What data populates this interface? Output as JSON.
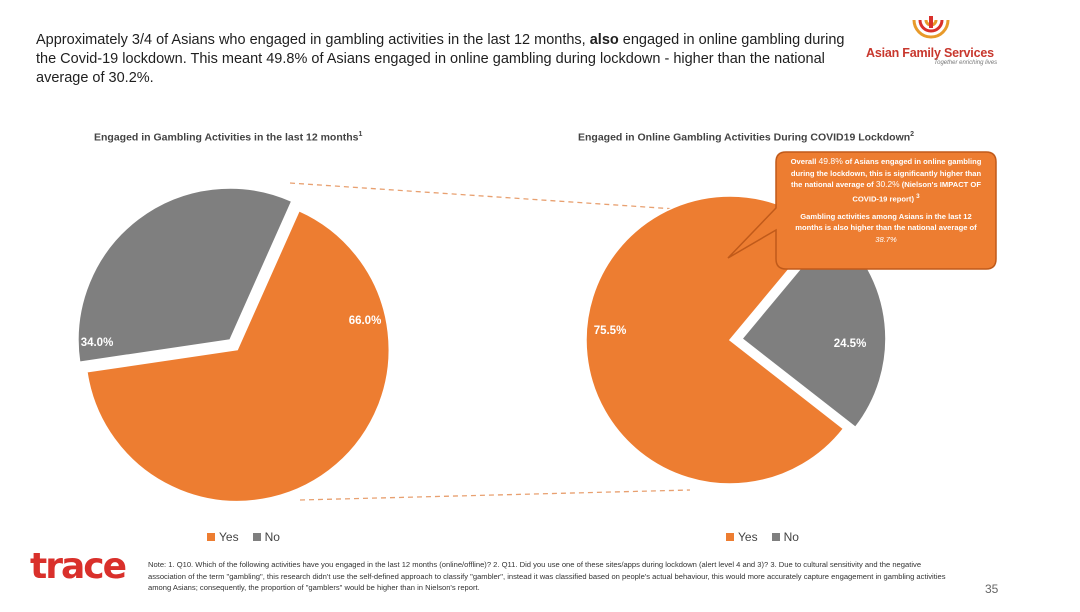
{
  "headline": {
    "part1": "Approximately 3/4 of Asians who engaged in gambling activities in the last 12 months, ",
    "bold": "also",
    "part2": " engaged in online gambling during the Covid-19 lockdown. This meant 49.8% of Asians engaged in online gambling during lockdown - higher than the national average of 30.2%."
  },
  "brand": {
    "name": "Asian Family Services",
    "tagline": "Together enriching lives",
    "footer_logo": "trace"
  },
  "colors": {
    "yes": "#ED7D31",
    "no": "#7F7F7F",
    "connector": "#E8A070",
    "callout_fill": "#ED7D31",
    "callout_border": "#C05A1A"
  },
  "chart_data": [
    {
      "type": "pie",
      "title": "Engaged in Gambling Activities in the last 12 months",
      "title_sup": "1",
      "categories": [
        "Yes",
        "No"
      ],
      "values": [
        66.0,
        34.0
      ],
      "labels": [
        "66.0%",
        "34.0%"
      ],
      "legend": [
        "Yes",
        "No"
      ],
      "legend_position": "bottom",
      "exploded": "Yes"
    },
    {
      "type": "pie",
      "title": "Engaged in Online Gambling Activities During COVID19 Lockdown",
      "title_sup": "2",
      "categories": [
        "Yes",
        "No"
      ],
      "values": [
        75.5,
        24.5
      ],
      "labels": [
        "75.5%",
        "24.5%"
      ],
      "legend": [
        "Yes",
        "No"
      ],
      "legend_position": "bottom",
      "exploded": "No"
    }
  ],
  "callout": {
    "p1_a": "Overall ",
    "p1_pct": "49.8%",
    "p1_b": " of Asians engaged in online gambling during the lockdown, this is significantly higher than the national average of ",
    "p1_pct2": "30.2%",
    "p1_c": " (Nielson's IMPACT OF COVID-19 report) ",
    "p1_sup": "3",
    "p2_a": "Gambling activities among Asians in the last 12 months is also higher than the national average of ",
    "p2_pct": "38.7%"
  },
  "note": "Note: 1. Q10. Which of the following activities have you engaged in the last 12 months (online/offline)? 2. Q11. Did you use one of these sites/apps during lockdown (alert level 4 and 3)? 3. Due to cultural sensitivity and the negative association of the term \"gambling\", this research didn't use the self-defined approach to classify \"gambler\", instead it was classified based on people's actual behaviour, this would more accurately capture engagement in gambling activities among Asians; consequently, the proportion of \"gamblers\" would be higher than in Nielson's report.",
  "page_number": "35"
}
